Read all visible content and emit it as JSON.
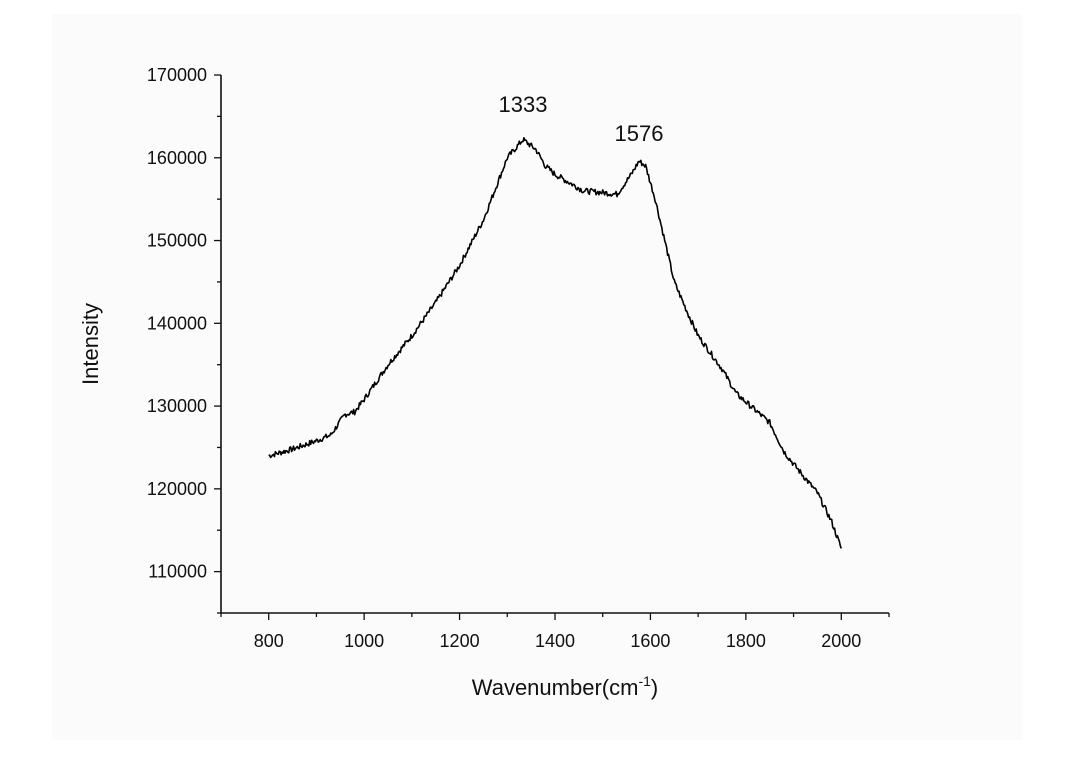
{
  "chart_data": {
    "type": "line",
    "xlabel": "Wavenumber(cm",
    "xlabel_sup": "-1",
    "xlabel_close": ")",
    "ylabel": "Intensity",
    "xlim": [
      700,
      2100
    ],
    "ylim": [
      105000,
      170000
    ],
    "xticks": [
      800,
      1000,
      1200,
      1400,
      1600,
      1800,
      2000
    ],
    "yticks": [
      110000,
      120000,
      130000,
      140000,
      150000,
      160000,
      170000
    ],
    "grid": false,
    "annotations": [
      {
        "text": "1333",
        "x": 1333,
        "y": 165500
      },
      {
        "text": "1576",
        "x": 1576,
        "y": 162000
      }
    ],
    "series": [
      {
        "color": "#000000",
        "points": [
          [
            800,
            124000
          ],
          [
            850,
            124800
          ],
          [
            900,
            125800
          ],
          [
            930,
            126500
          ],
          [
            960,
            129000
          ],
          [
            980,
            129300
          ],
          [
            1000,
            130800
          ],
          [
            1050,
            135000
          ],
          [
            1100,
            138500
          ],
          [
            1150,
            142500
          ],
          [
            1200,
            147000
          ],
          [
            1250,
            152500
          ],
          [
            1280,
            157000
          ],
          [
            1300,
            160000
          ],
          [
            1333,
            162200
          ],
          [
            1360,
            161000
          ],
          [
            1380,
            159000
          ],
          [
            1400,
            158000
          ],
          [
            1430,
            157000
          ],
          [
            1460,
            156000
          ],
          [
            1500,
            155800
          ],
          [
            1530,
            155600
          ],
          [
            1560,
            158000
          ],
          [
            1576,
            159600
          ],
          [
            1590,
            159000
          ],
          [
            1610,
            155000
          ],
          [
            1630,
            150000
          ],
          [
            1650,
            145000
          ],
          [
            1680,
            141000
          ],
          [
            1700,
            138500
          ],
          [
            1750,
            134500
          ],
          [
            1780,
            131500
          ],
          [
            1800,
            130500
          ],
          [
            1850,
            128000
          ],
          [
            1880,
            124500
          ],
          [
            1900,
            123000
          ],
          [
            1950,
            119500
          ],
          [
            1980,
            116000
          ],
          [
            2000,
            112800
          ]
        ]
      }
    ]
  }
}
